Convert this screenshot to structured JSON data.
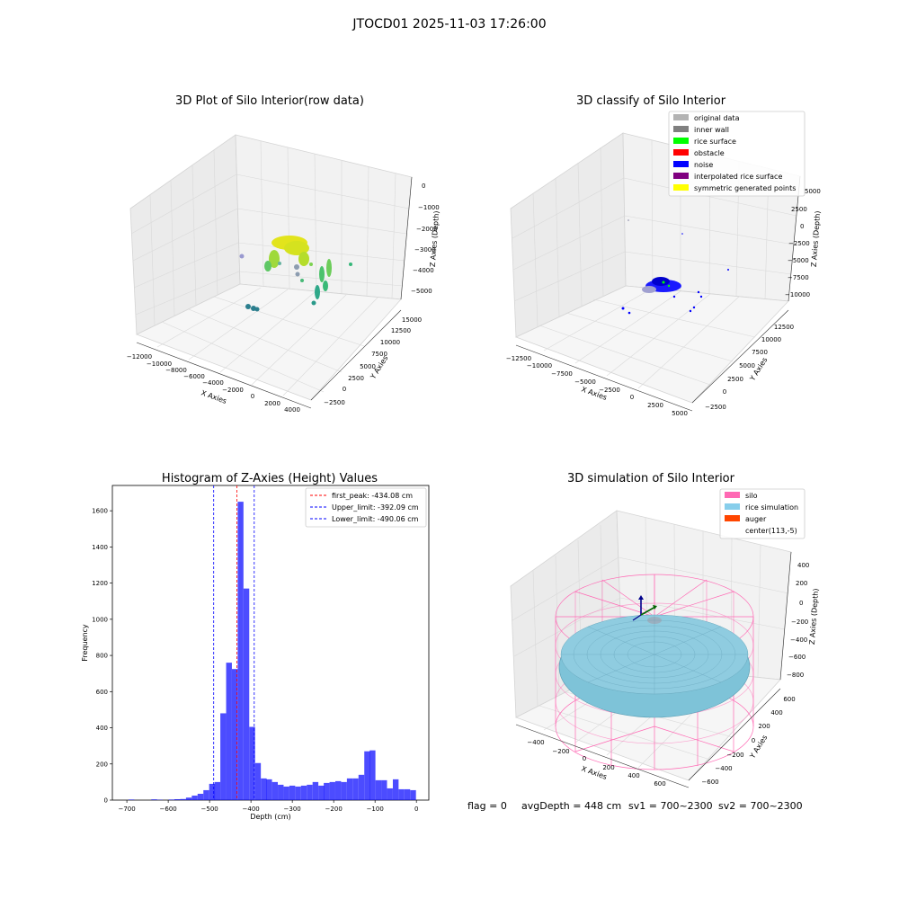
{
  "figure": {
    "suptitle": "JTOCD01 2025-11-03 17:26:00",
    "footer": {
      "flag": "flag = 0",
      "avg_depth": "avgDepth = 448 cm",
      "sv1": "sv1 = 700~2300",
      "sv2": "sv2 = 700~2300"
    }
  },
  "chart_data": [
    {
      "type": "scatter3d",
      "title": "3D Plot of Silo Interior(row data)",
      "xlabel": "X Axies",
      "ylabel": "Y Axies",
      "zlabel": "Z Axies (Depth)",
      "x_ticks": [
        "−12000",
        "−10000",
        "−8000",
        "−6000",
        "−4000",
        "−2000",
        "0",
        "2000",
        "4000"
      ],
      "y_ticks": [
        "−2500",
        "0",
        "2500",
        "5000",
        "7500",
        "10000",
        "12500",
        "15000"
      ],
      "z_ticks": [
        "0",
        "−1000",
        "−2000",
        "−3000",
        "−4000",
        "−5000"
      ],
      "colormap": "viridis"
    },
    {
      "type": "scatter3d",
      "title": "3D classify of Silo Interior",
      "xlabel": "X Axies",
      "ylabel": "Y Axies",
      "zlabel": "Z Axies (Depth)",
      "x_ticks": [
        "−12500",
        "−10000",
        "−7500",
        "−5000",
        "−2500",
        "0",
        "2500",
        "5000"
      ],
      "y_ticks": [
        "−2500",
        "0",
        "2500",
        "5000",
        "7500",
        "10000",
        "12500"
      ],
      "z_ticks": [
        "5000",
        "2500",
        "0",
        "−2500",
        "−5000",
        "−7500",
        "−10000"
      ],
      "legend": [
        {
          "label": "original data",
          "color": "#b3b3b3"
        },
        {
          "label": "inner wall",
          "color": "#808080"
        },
        {
          "label": "rice surface",
          "color": "#00ff00"
        },
        {
          "label": "obstacle",
          "color": "#ff0000"
        },
        {
          "label": "noise",
          "color": "#0000ff"
        },
        {
          "label": "interpolated rice surface",
          "color": "#800080"
        },
        {
          "label": "symmetric generated points",
          "color": "#ffff00"
        }
      ],
      "legend_position": "top-right"
    },
    {
      "type": "bar",
      "title": "Histogram of Z-Axies (Height) Values",
      "xlabel": "Depth (cm)",
      "ylabel": "Frequency",
      "xlim": [
        -735,
        30
      ],
      "ylim": [
        0,
        1740
      ],
      "x_ticks": [
        -700,
        -600,
        -500,
        -400,
        -300,
        -200,
        -100,
        0
      ],
      "y_ticks": [
        0,
        200,
        400,
        600,
        800,
        1000,
        1200,
        1400,
        1600
      ],
      "bar_color": "#0000ff",
      "bar_alpha": 0.7,
      "bin_width": 13.9,
      "bins": [
        [
          -696,
          3
        ],
        [
          -682,
          0
        ],
        [
          -668,
          0
        ],
        [
          -654,
          0
        ],
        [
          -641,
          4
        ],
        [
          -627,
          2
        ],
        [
          -613,
          0
        ],
        [
          -599,
          3
        ],
        [
          -585,
          5
        ],
        [
          -571,
          6
        ],
        [
          -557,
          14
        ],
        [
          -543,
          25
        ],
        [
          -529,
          35
        ],
        [
          -515,
          55
        ],
        [
          -501,
          90
        ],
        [
          -488,
          100
        ],
        [
          -474,
          480
        ],
        [
          -460,
          760
        ],
        [
          -446,
          725
        ],
        [
          -432,
          1650
        ],
        [
          -418,
          1170
        ],
        [
          -404,
          405
        ],
        [
          -390,
          205
        ],
        [
          -376,
          120
        ],
        [
          -363,
          115
        ],
        [
          -349,
          100
        ],
        [
          -335,
          85
        ],
        [
          -321,
          75
        ],
        [
          -307,
          80
        ],
        [
          -293,
          75
        ],
        [
          -279,
          80
        ],
        [
          -265,
          85
        ],
        [
          -251,
          100
        ],
        [
          -237,
          80
        ],
        [
          -224,
          95
        ],
        [
          -210,
          100
        ],
        [
          -196,
          105
        ],
        [
          -182,
          100
        ],
        [
          -168,
          120
        ],
        [
          -154,
          120
        ],
        [
          -140,
          140
        ],
        [
          -126,
          270
        ],
        [
          -113,
          275
        ],
        [
          -99,
          110
        ],
        [
          -85,
          110
        ],
        [
          -71,
          65
        ],
        [
          -57,
          115
        ],
        [
          -43,
          60
        ],
        [
          -29,
          60
        ],
        [
          -15,
          55
        ]
      ],
      "vlines": [
        {
          "x": -434.08,
          "color": "#ff0000",
          "label": "first_peak: -434.08 cm"
        },
        {
          "x": -392.09,
          "color": "#0000ff",
          "label": "Upper_limit: -392.09 cm"
        },
        {
          "x": -490.06,
          "color": "#0000ff",
          "label": "Lower_limit: -490.06 cm"
        }
      ],
      "legend_position": "top-right"
    },
    {
      "type": "surface3d",
      "title": "3D simulation of Silo Interior",
      "xlabel": "X Axies",
      "ylabel": "Y Axies",
      "zlabel": "Z Axies (Depth)",
      "x_ticks": [
        "−400",
        "−200",
        "0",
        "200",
        "400",
        "600"
      ],
      "y_ticks": [
        "−600",
        "−400",
        "−200",
        "0",
        "200",
        "400",
        "600"
      ],
      "z_ticks": [
        "400",
        "200",
        "0",
        "−200",
        "−400",
        "−600",
        "−800"
      ],
      "legend": [
        {
          "label": "silo",
          "color": "#ff69b4"
        },
        {
          "label": "rice simulation",
          "color": "#87ceeb"
        },
        {
          "label": "auger",
          "color": "#ff4500"
        },
        {
          "label": "center(113,-5)",
          "color": "#ffffff"
        }
      ],
      "legend_position": "top-right"
    }
  ]
}
